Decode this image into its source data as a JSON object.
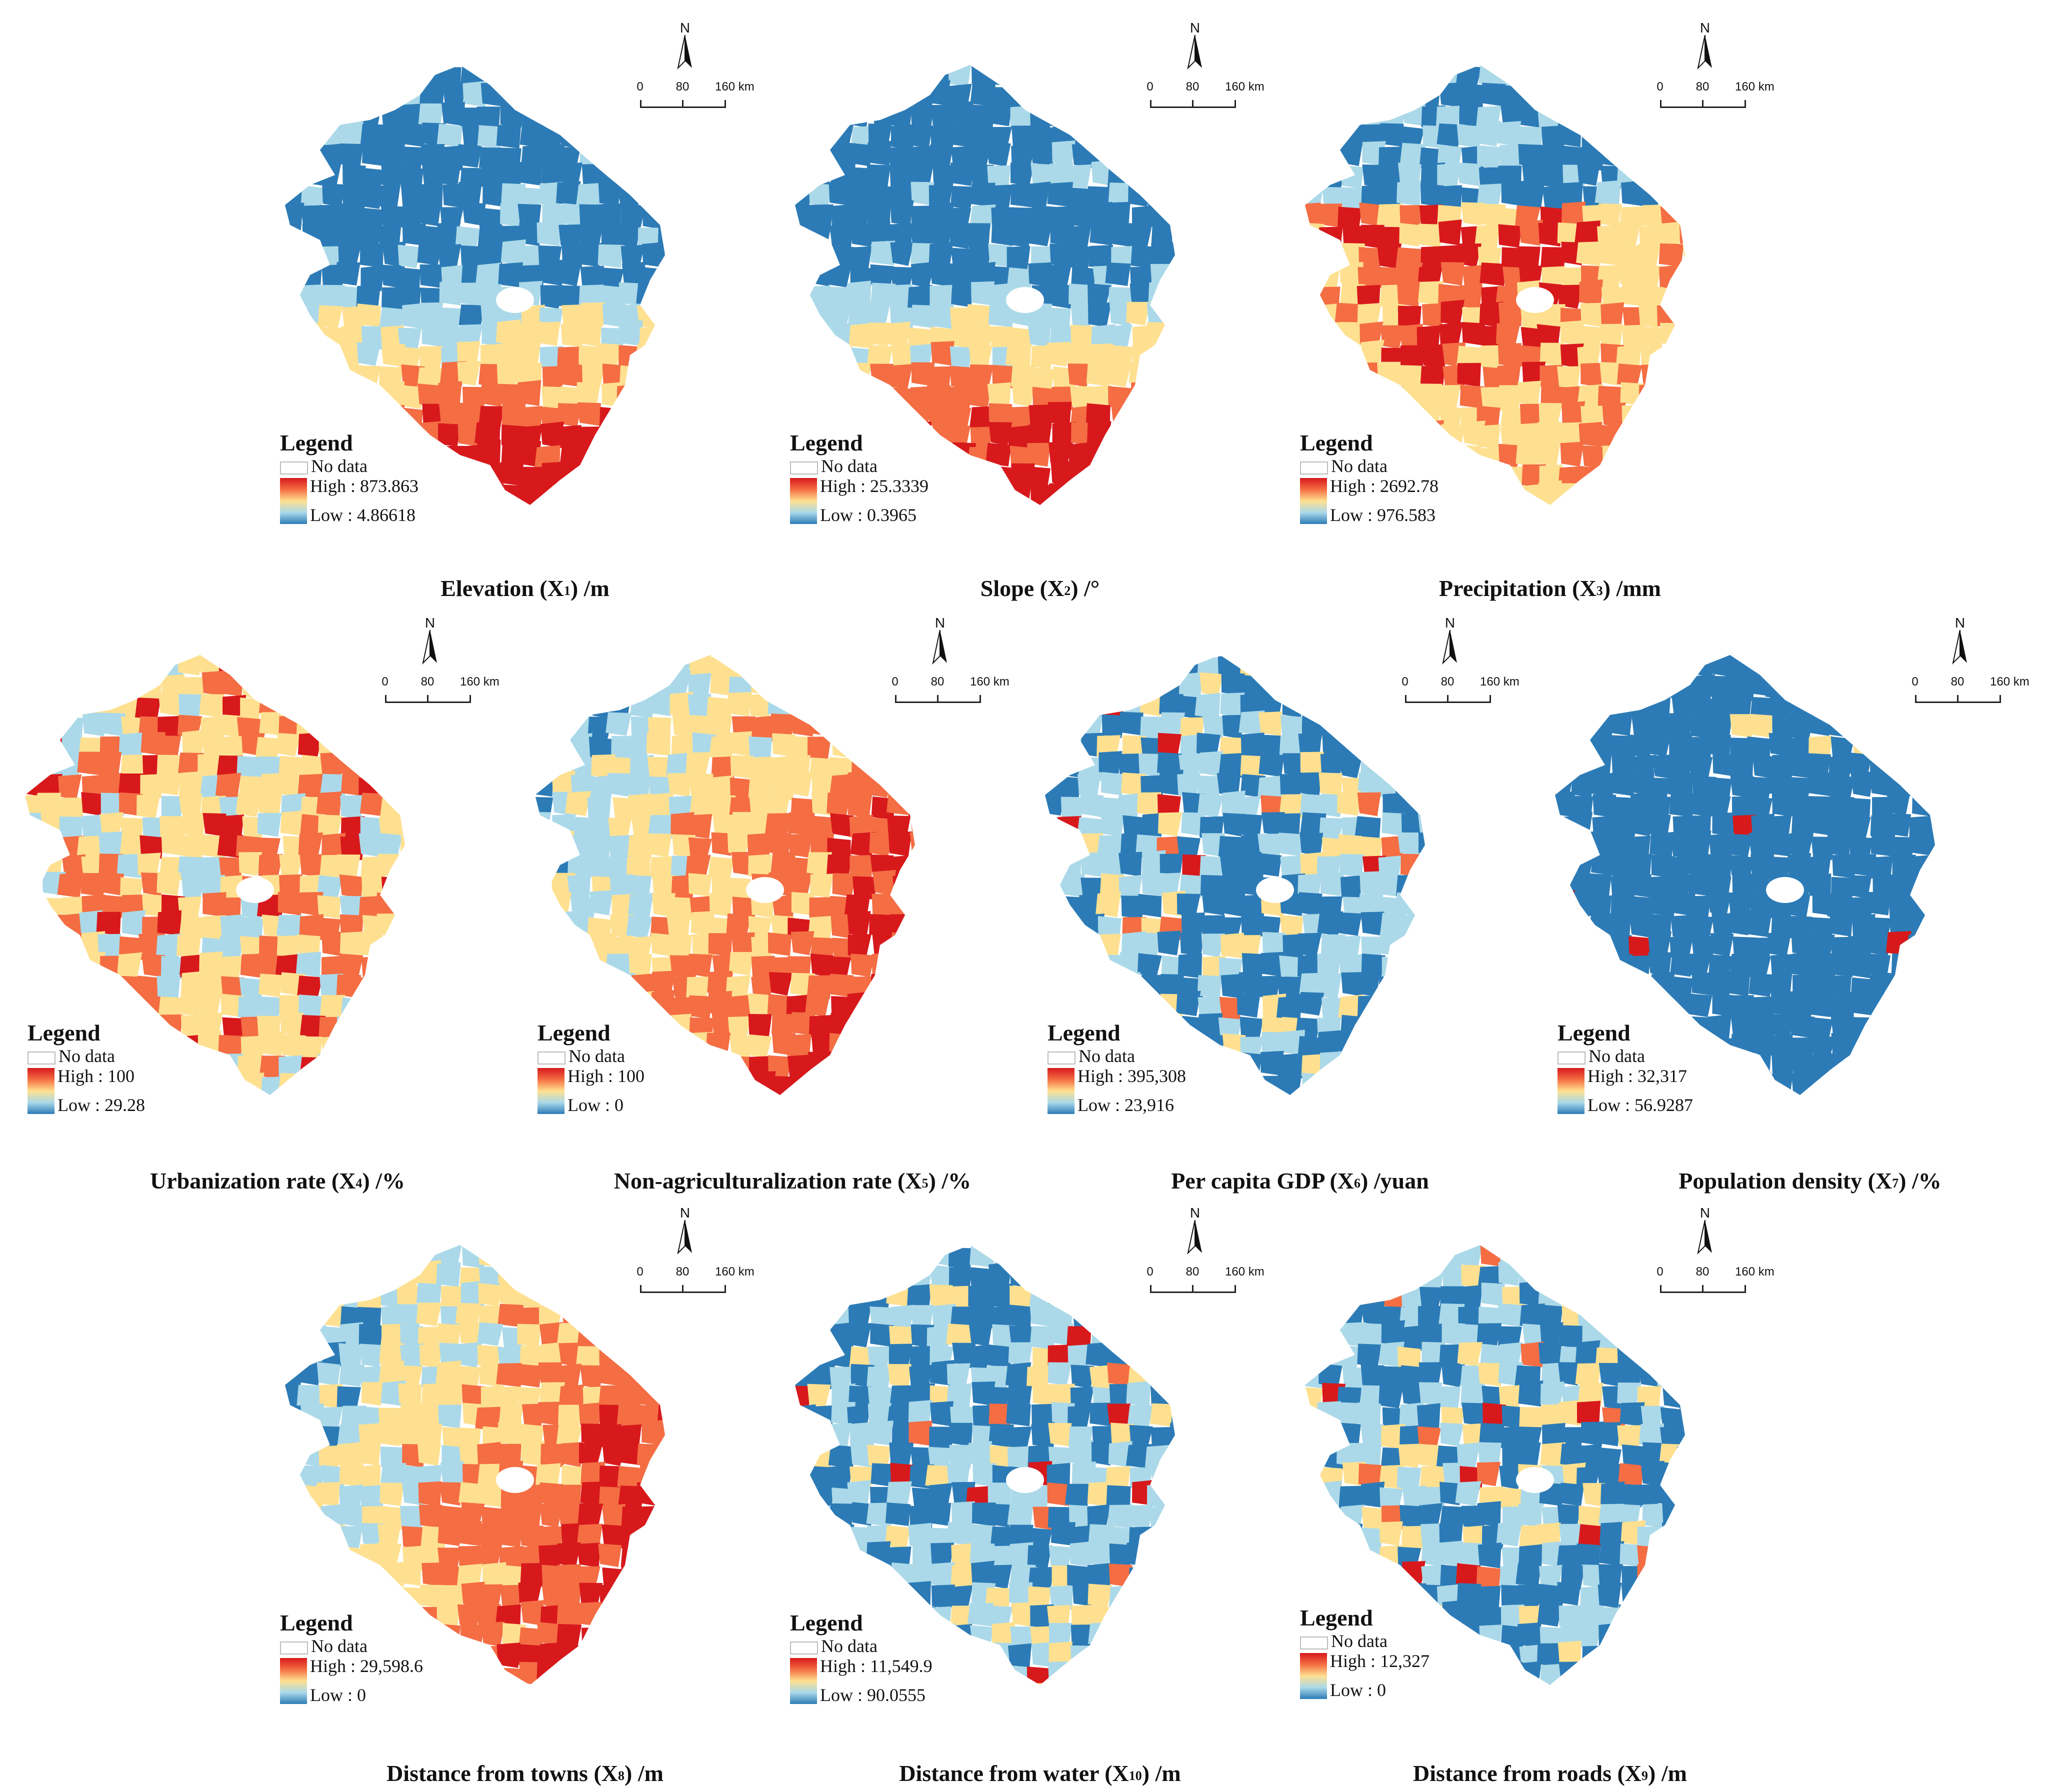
{
  "legend_title": "Legend",
  "no_data_label": "No data",
  "scale": {
    "labels": [
      "0",
      "80",
      "160 km"
    ]
  },
  "north_letter": "N",
  "panels": [
    {
      "id": "x1",
      "caption_pre": "Elevation (X",
      "caption_sub": "1",
      "caption_post": ") /m",
      "high": "High : 873.863",
      "low": "Low : 4.86618",
      "pattern": "south-high",
      "colors": [
        "#2c7bb6",
        "#abd9e9",
        "#fee090",
        "#f46d43",
        "#d7191c"
      ]
    },
    {
      "id": "x2",
      "caption_pre": "Slope (X",
      "caption_sub": "2",
      "caption_post": ") /°",
      "high": "High : 25.3339",
      "low": "Low : 0.3965",
      "pattern": "south-high",
      "colors": [
        "#2c7bb6",
        "#abd9e9",
        "#fee090",
        "#f46d43",
        "#d7191c"
      ]
    },
    {
      "id": "x3",
      "caption_pre": "Precipitation (X",
      "caption_sub": "3",
      "caption_post": ") /mm",
      "high": "High : 2692.78",
      "low": "Low : 976.583",
      "pattern": "middle-high",
      "colors": [
        "#2c7bb6",
        "#abd9e9",
        "#fee090",
        "#f46d43",
        "#d7191c"
      ]
    },
    {
      "id": "x4",
      "caption_pre": "Urbanization rate (X",
      "caption_sub": "4",
      "caption_post": ") /%",
      "high": "High : 100",
      "low": "Low : 29.28",
      "pattern": "mixed",
      "colors": [
        "#2c7bb6",
        "#abd9e9",
        "#fee090",
        "#f46d43",
        "#d7191c"
      ]
    },
    {
      "id": "x5",
      "caption_pre": "Non-agriculturalization rate (X",
      "caption_sub": "5",
      "caption_post": ") /%",
      "high": "High : 100",
      "low": "Low : 0",
      "pattern": "east-high",
      "colors": [
        "#2c7bb6",
        "#abd9e9",
        "#fee090",
        "#f46d43",
        "#d7191c"
      ]
    },
    {
      "id": "x6",
      "caption_pre": "Per capita GDP (X",
      "caption_sub": "6",
      "caption_post": ") /yuan",
      "high": "High : 395,308",
      "low": "Low : 23,916",
      "pattern": "low-mixed",
      "colors": [
        "#2c7bb6",
        "#abd9e9",
        "#fee090",
        "#f46d43",
        "#d7191c"
      ]
    },
    {
      "id": "x7",
      "caption_pre": "Population density (X",
      "caption_sub": "7",
      "caption_post": ") /%",
      "high": "High : 32,317",
      "low": "Low : 56.9287",
      "pattern": "all-low",
      "colors": [
        "#2c7bb6",
        "#abd9e9",
        "#fee090",
        "#f46d43",
        "#d7191c"
      ]
    },
    {
      "id": "x8",
      "caption_pre": "Distance from towns (X",
      "caption_sub": "8",
      "caption_post": ") /m",
      "high": "High : 29,598.6",
      "low": "Low : 0",
      "pattern": "east-high",
      "colors": [
        "#2c7bb6",
        "#abd9e9",
        "#fee090",
        "#f46d43",
        "#d7191c"
      ]
    },
    {
      "id": "x10",
      "caption_pre": "Distance from water (X",
      "caption_sub": "10",
      "caption_post": ") /m",
      "high": "High : 11,549.9",
      "low": "Low : 90.0555",
      "pattern": "low-mixed",
      "colors": [
        "#2c7bb6",
        "#abd9e9",
        "#fee090",
        "#f46d43",
        "#d7191c"
      ]
    },
    {
      "id": "x9",
      "caption_pre": "Distance from roads (X",
      "caption_sub": "9",
      "caption_post": ") /m",
      "high": "High : 12,327",
      "low": "Low : 0",
      "pattern": "low-mixed",
      "colors": [
        "#2c7bb6",
        "#abd9e9",
        "#fee090",
        "#f46d43",
        "#d7191c"
      ]
    }
  ]
}
